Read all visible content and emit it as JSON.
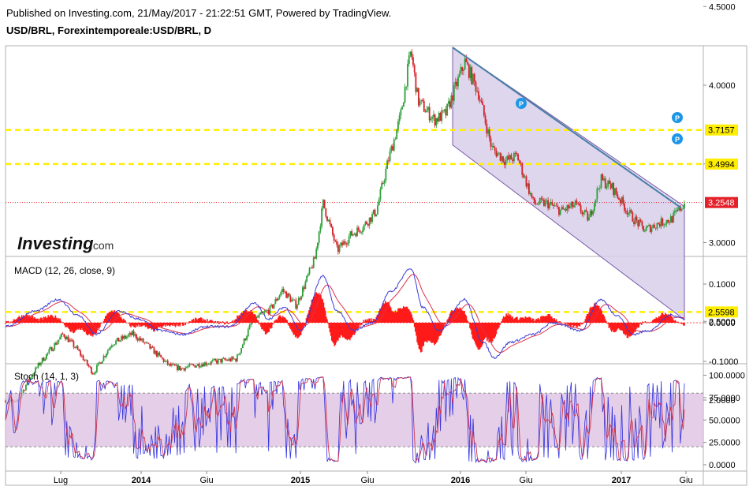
{
  "header": {
    "published": "Published on Investing.com, 21/May/2017 - 21:22:51 GMT, Powered by TradingView.",
    "symbol": "USD/BRL, Forexintemporeale:USD/BRL, D"
  },
  "watermark": {
    "brand": "Investing",
    "suffix": ".com"
  },
  "colors": {
    "up": "#2e9e3a",
    "down": "#d4222a",
    "macd_line": "#3b3bd6",
    "signal_line": "#e0324b",
    "hist": "#ff1a1a",
    "level": "#ffee00",
    "channel_fill": "#d8cfea",
    "channel_border": "#7a5aa8",
    "trendline": "#4a7fa8",
    "stoch_k": "#3030e0",
    "stoch_d": "#d2334a",
    "stoch_band": "#dcbde0",
    "price_tag": "#e4202a",
    "pin": "#1e96e8"
  },
  "chart_data": [
    {
      "type": "candlestick",
      "title": "USD/BRL, Forexintemporeale:USD/BRL, D",
      "x_ticks": [
        "Lug",
        "2014",
        "Giu",
        "2015",
        "Giu",
        "2016",
        "Giu",
        "2017",
        "Giu"
      ],
      "y_ticks": [
        "4.5000",
        "4.0000",
        "3.5000",
        "3.0000",
        "2.5000",
        "2.0000"
      ],
      "ylim": [
        1.5,
        4.53
      ],
      "path": [
        [
          "2013-04-15",
          2.0
        ],
        [
          "2013-05-10",
          1.98
        ],
        [
          "2013-06-05",
          2.13
        ],
        [
          "2013-07-01",
          2.24
        ],
        [
          "2013-08-20",
          2.42
        ],
        [
          "2013-09-20",
          2.32
        ],
        [
          "2013-10-25",
          2.17
        ],
        [
          "2013-12-05",
          2.36
        ],
        [
          "2014-01-20",
          2.42
        ],
        [
          "2014-02-20",
          2.35
        ],
        [
          "2014-04-10",
          2.22
        ],
        [
          "2014-05-05",
          2.2
        ],
        [
          "2014-06-20",
          2.23
        ],
        [
          "2014-08-01",
          2.25
        ],
        [
          "2014-09-05",
          2.26
        ],
        [
          "2014-10-10",
          2.5
        ],
        [
          "2014-11-20",
          2.58
        ],
        [
          "2014-12-15",
          2.7
        ],
        [
          "2015-01-15",
          2.6
        ],
        [
          "2015-02-25",
          2.9
        ],
        [
          "2015-03-15",
          3.25
        ],
        [
          "2015-04-15",
          2.95
        ],
        [
          "2015-05-15",
          3.05
        ],
        [
          "2015-06-10",
          3.1
        ],
        [
          "2015-07-10",
          3.2
        ],
        [
          "2015-08-05",
          3.52
        ],
        [
          "2015-09-01",
          3.8
        ],
        [
          "2015-09-24",
          4.22
        ],
        [
          "2015-10-10",
          3.9
        ],
        [
          "2015-11-15",
          3.78
        ],
        [
          "2015-12-10",
          3.82
        ],
        [
          "2016-01-21",
          4.15
        ],
        [
          "2016-02-20",
          3.95
        ],
        [
          "2016-03-20",
          3.6
        ],
        [
          "2016-04-20",
          3.52
        ],
        [
          "2016-05-15",
          3.55
        ],
        [
          "2016-06-20",
          3.25
        ],
        [
          "2016-07-20",
          3.25
        ],
        [
          "2016-08-20",
          3.2
        ],
        [
          "2016-09-20",
          3.24
        ],
        [
          "2016-10-20",
          3.15
        ],
        [
          "2016-11-15",
          3.4
        ],
        [
          "2016-12-10",
          3.35
        ],
        [
          "2017-01-20",
          3.17
        ],
        [
          "2017-02-20",
          3.08
        ],
        [
          "2017-03-20",
          3.12
        ],
        [
          "2017-04-20",
          3.15
        ],
        [
          "2017-05-18",
          3.25
        ]
      ],
      "levels": [
        3.7157,
        3.4994,
        2.5598
      ],
      "last_price": 3.2548,
      "price_tags": [
        "3.7157",
        "3.4994",
        "3.2548",
        "2.5598"
      ],
      "channel": {
        "upper": [
          [
            "2015-12-25",
            4.24
          ],
          [
            "2017-05-18",
            3.23
          ]
        ],
        "lower": [
          [
            "2015-12-25",
            3.62
          ],
          [
            "2017-05-18",
            2.51
          ]
        ]
      },
      "pin_labels": [
        "P",
        "P",
        "P"
      ]
    },
    {
      "type": "line",
      "title": "MACD (12, 26, close, 9)",
      "y_ticks": [
        "0.1000",
        "0.0000",
        "-0.1000"
      ],
      "ylim": [
        -0.1,
        0.14
      ],
      "macd_line": [
        [
          "2013-04-15",
          -0.01
        ],
        [
          "2013-06-20",
          0.03
        ],
        [
          "2013-08-10",
          0.06
        ],
        [
          "2013-09-20",
          0.02
        ],
        [
          "2013-11-01",
          -0.03
        ],
        [
          "2013-12-20",
          0.03
        ],
        [
          "2014-02-01",
          0.01
        ],
        [
          "2014-03-20",
          -0.02
        ],
        [
          "2014-05-10",
          -0.03
        ],
        [
          "2014-07-01",
          -0.01
        ],
        [
          "2014-08-20",
          -0.01
        ],
        [
          "2014-10-15",
          0.05
        ],
        [
          "2014-11-15",
          0.01
        ],
        [
          "2014-12-20",
          0.04
        ],
        [
          "2015-01-25",
          -0.02
        ],
        [
          "2015-03-15",
          0.12
        ],
        [
          "2015-04-15",
          0.03
        ],
        [
          "2015-05-20",
          -0.02
        ],
        [
          "2015-07-01",
          0.0
        ],
        [
          "2015-08-10",
          0.08
        ],
        [
          "2015-09-24",
          0.14
        ],
        [
          "2015-10-20",
          0.04
        ],
        [
          "2015-11-25",
          -0.02
        ],
        [
          "2016-01-20",
          0.06
        ],
        [
          "2016-03-01",
          -0.05
        ],
        [
          "2016-03-25",
          -0.09
        ],
        [
          "2016-05-01",
          -0.05
        ],
        [
          "2016-06-20",
          -0.03
        ],
        [
          "2016-08-01",
          0.0
        ],
        [
          "2016-10-01",
          -0.02
        ],
        [
          "2016-11-15",
          0.06
        ],
        [
          "2016-12-20",
          0.02
        ],
        [
          "2017-01-25",
          -0.03
        ],
        [
          "2017-03-01",
          -0.02
        ],
        [
          "2017-04-20",
          0.02
        ],
        [
          "2017-05-18",
          0.01
        ]
      ]
    },
    {
      "type": "line",
      "title": "Stoch (14, 1, 3)",
      "y_ticks": [
        "100.0000",
        "75.0000",
        "50.0000",
        "25.0000",
        "0.0000"
      ],
      "ylim": [
        0,
        100
      ],
      "band": [
        20,
        80
      ]
    }
  ]
}
